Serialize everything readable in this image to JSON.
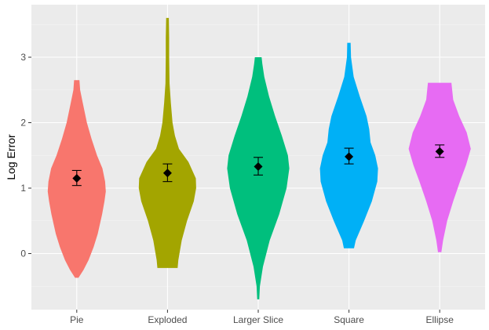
{
  "chart_data": {
    "type": "violin",
    "title": "",
    "xlabel": "",
    "ylabel": "Log Error",
    "ylim": [
      -0.95,
      3.85
    ],
    "y_ticks": [
      0,
      1,
      2,
      3
    ],
    "grid": true,
    "legend": "none",
    "categories": [
      "Pie",
      "Exploded",
      "Larger Slice",
      "Square",
      "Ellipse"
    ],
    "colors": [
      "#f8766d",
      "#a3a500",
      "#00bf7d",
      "#00b0f6",
      "#e76bf3"
    ],
    "mean": [
      1.15,
      1.23,
      1.33,
      1.48,
      1.56
    ],
    "ci_low": [
      1.04,
      1.1,
      1.2,
      1.37,
      1.47
    ],
    "ci_high": [
      1.27,
      1.37,
      1.47,
      1.61,
      1.66
    ],
    "density": [
      [
        [
          -0.37,
          0.05
        ],
        [
          -0.25,
          0.2
        ],
        [
          -0.1,
          0.35
        ],
        [
          0.1,
          0.5
        ],
        [
          0.3,
          0.62
        ],
        [
          0.6,
          0.75
        ],
        [
          0.8,
          0.82
        ],
        [
          0.95,
          0.86
        ],
        [
          1.1,
          0.84
        ],
        [
          1.3,
          0.76
        ],
        [
          1.5,
          0.6
        ],
        [
          1.75,
          0.44
        ],
        [
          2.0,
          0.3
        ],
        [
          2.3,
          0.18
        ],
        [
          2.5,
          0.1
        ],
        [
          2.65,
          0.08
        ]
      ],
      [
        [
          -0.22,
          0.3
        ],
        [
          -0.1,
          0.32
        ],
        [
          0.2,
          0.42
        ],
        [
          0.5,
          0.58
        ],
        [
          0.8,
          0.78
        ],
        [
          1.0,
          0.85
        ],
        [
          1.15,
          0.84
        ],
        [
          1.4,
          0.62
        ],
        [
          1.6,
          0.34
        ],
        [
          1.8,
          0.22
        ],
        [
          2.0,
          0.15
        ],
        [
          2.3,
          0.1
        ],
        [
          2.6,
          0.06
        ],
        [
          3.0,
          0.05
        ],
        [
          3.3,
          0.05
        ],
        [
          3.6,
          0.04
        ]
      ],
      [
        [
          -0.7,
          0.03
        ],
        [
          -0.5,
          0.05
        ],
        [
          -0.2,
          0.14
        ],
        [
          0.2,
          0.34
        ],
        [
          0.6,
          0.62
        ],
        [
          1.0,
          0.84
        ],
        [
          1.3,
          0.92
        ],
        [
          1.5,
          0.88
        ],
        [
          1.8,
          0.7
        ],
        [
          2.1,
          0.5
        ],
        [
          2.4,
          0.32
        ],
        [
          2.7,
          0.18
        ],
        [
          2.9,
          0.12
        ],
        [
          3.0,
          0.1
        ]
      ],
      [
        [
          0.08,
          0.15
        ],
        [
          0.2,
          0.2
        ],
        [
          0.5,
          0.45
        ],
        [
          0.8,
          0.68
        ],
        [
          1.1,
          0.84
        ],
        [
          1.3,
          0.86
        ],
        [
          1.5,
          0.78
        ],
        [
          1.7,
          0.64
        ],
        [
          1.9,
          0.6
        ],
        [
          2.1,
          0.52
        ],
        [
          2.4,
          0.32
        ],
        [
          2.7,
          0.14
        ],
        [
          3.0,
          0.06
        ],
        [
          3.22,
          0.05
        ]
      ],
      [
        [
          0.02,
          0.05
        ],
        [
          0.2,
          0.1
        ],
        [
          0.5,
          0.22
        ],
        [
          0.8,
          0.4
        ],
        [
          1.1,
          0.6
        ],
        [
          1.35,
          0.78
        ],
        [
          1.6,
          0.92
        ],
        [
          1.85,
          0.8
        ],
        [
          2.1,
          0.58
        ],
        [
          2.35,
          0.4
        ],
        [
          2.6,
          0.35
        ],
        [
          2.61,
          0.35
        ]
      ]
    ]
  }
}
